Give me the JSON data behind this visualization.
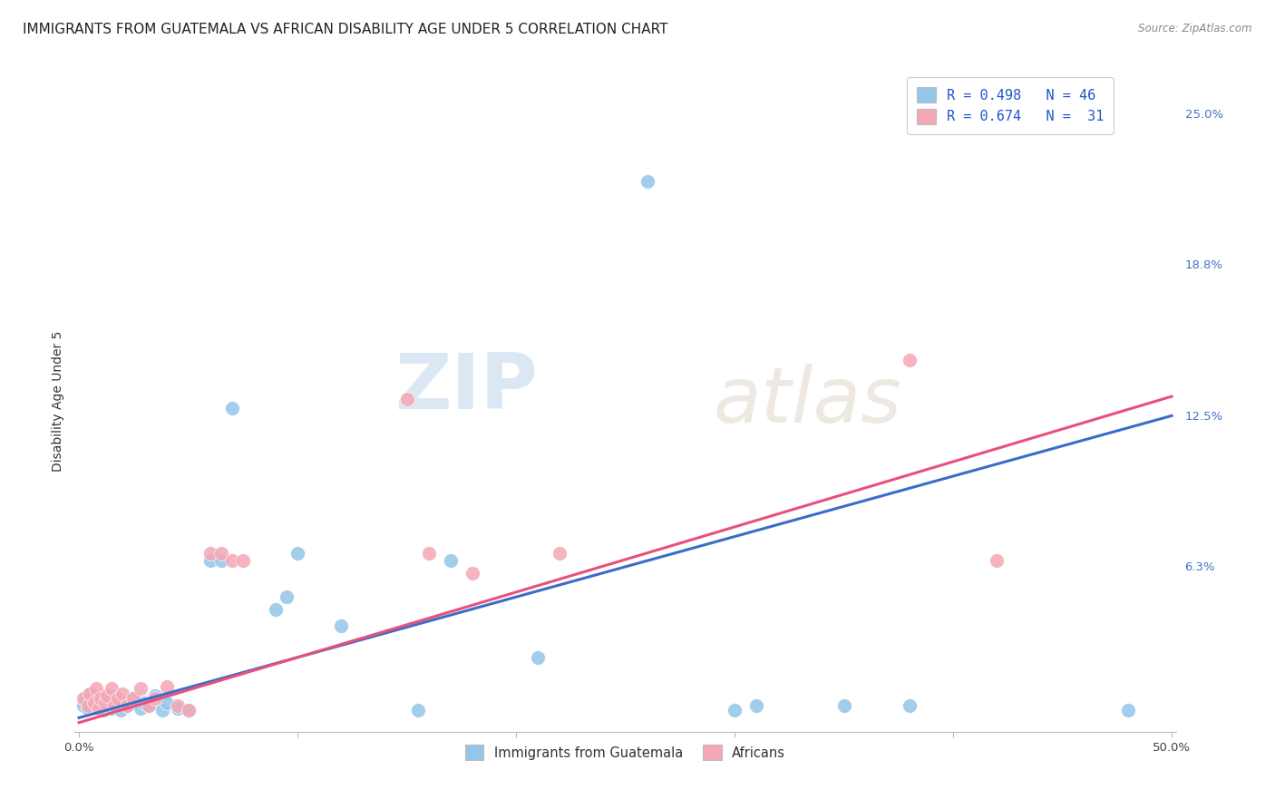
{
  "title": "IMMIGRANTS FROM GUATEMALA VS AFRICAN DISABILITY AGE UNDER 5 CORRELATION CHART",
  "source": "Source: ZipAtlas.com",
  "ylabel": "Disability Age Under 5",
  "x_tick_positions": [
    0.0,
    0.1,
    0.2,
    0.3,
    0.4,
    0.5
  ],
  "x_tick_labels": [
    "0.0%",
    "",
    "",
    "",
    "",
    "50.0%"
  ],
  "y_tick_labels_right": [
    "25.0%",
    "18.8%",
    "12.5%",
    "6.3%"
  ],
  "y_tick_vals": [
    0.25,
    0.188,
    0.125,
    0.063
  ],
  "xlim": [
    -0.002,
    0.502
  ],
  "ylim": [
    -0.006,
    0.268
  ],
  "color_blue": "#93C6E8",
  "color_pink": "#F4A7B5",
  "watermark_zip": "ZIP",
  "watermark_atlas": "atlas",
  "blue_scatter_x": [
    0.002,
    0.003,
    0.004,
    0.005,
    0.006,
    0.007,
    0.007,
    0.008,
    0.009,
    0.01,
    0.011,
    0.012,
    0.013,
    0.014,
    0.015,
    0.016,
    0.017,
    0.018,
    0.019,
    0.02,
    0.022,
    0.025,
    0.028,
    0.03,
    0.032,
    0.035,
    0.038,
    0.04,
    0.045,
    0.05,
    0.06,
    0.065,
    0.07,
    0.09,
    0.095,
    0.1,
    0.12,
    0.155,
    0.17,
    0.21,
    0.26,
    0.3,
    0.31,
    0.35,
    0.38,
    0.48
  ],
  "blue_scatter_y": [
    0.005,
    0.008,
    0.004,
    0.01,
    0.007,
    0.005,
    0.009,
    0.006,
    0.008,
    0.005,
    0.003,
    0.007,
    0.006,
    0.009,
    0.004,
    0.007,
    0.005,
    0.008,
    0.003,
    0.006,
    0.005,
    0.008,
    0.004,
    0.006,
    0.005,
    0.009,
    0.003,
    0.006,
    0.004,
    0.003,
    0.065,
    0.065,
    0.128,
    0.045,
    0.05,
    0.068,
    0.038,
    0.003,
    0.065,
    0.025,
    0.222,
    0.003,
    0.005,
    0.005,
    0.005,
    0.003
  ],
  "pink_scatter_x": [
    0.002,
    0.004,
    0.005,
    0.007,
    0.008,
    0.009,
    0.01,
    0.012,
    0.013,
    0.015,
    0.016,
    0.018,
    0.02,
    0.022,
    0.025,
    0.028,
    0.032,
    0.035,
    0.04,
    0.045,
    0.05,
    0.06,
    0.065,
    0.07,
    0.075,
    0.15,
    0.16,
    0.18,
    0.22,
    0.38,
    0.42
  ],
  "pink_scatter_y": [
    0.008,
    0.005,
    0.01,
    0.006,
    0.012,
    0.004,
    0.008,
    0.006,
    0.009,
    0.012,
    0.005,
    0.008,
    0.01,
    0.005,
    0.008,
    0.012,
    0.005,
    0.008,
    0.013,
    0.005,
    0.003,
    0.068,
    0.068,
    0.065,
    0.065,
    0.132,
    0.068,
    0.06,
    0.068,
    0.148,
    0.065
  ],
  "blue_line_x": [
    0.0,
    0.5
  ],
  "blue_line_y": [
    0.0,
    0.125
  ],
  "pink_line_x": [
    0.0,
    0.5
  ],
  "pink_line_y": [
    -0.002,
    0.133
  ],
  "background_color": "#ffffff",
  "grid_color": "#cccccc",
  "title_fontsize": 11,
  "axis_label_fontsize": 10,
  "tick_fontsize": 9.5
}
